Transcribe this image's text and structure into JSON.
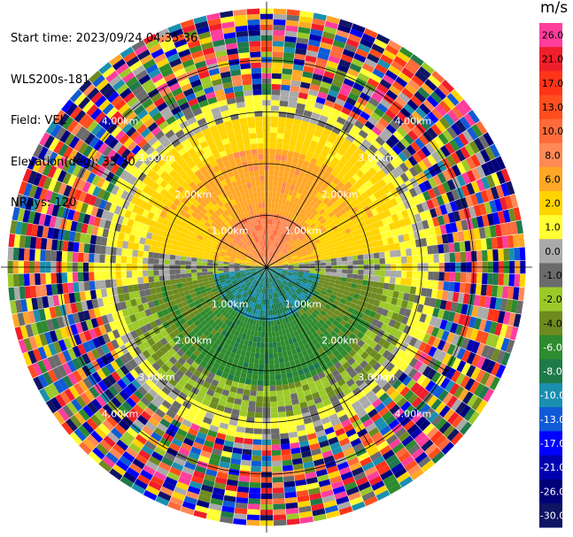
{
  "header": {
    "start_time": "Start time: 2023/09/24 04:35:36",
    "instrument": "WLS200s-181",
    "field": "Field: VEL",
    "elevation": "Elevation(deg): 35.30",
    "nrays": "NRays: 120"
  },
  "colorbar": {
    "unit": "m/s",
    "ticks": [
      "26.0",
      "21.0",
      "17.0",
      "13.0",
      "10.0",
      "8.0",
      "6.0",
      "2.0",
      "1.0",
      "0.0",
      "-1.0",
      "-2.0",
      "-4.0",
      "-6.0",
      "-8.0",
      "-10.0",
      "-13.0",
      "-17.0",
      "-21.0",
      "-26.0",
      "-30.0"
    ],
    "colors": [
      "#ff3d9c",
      "#f01e2a",
      "#ff3419",
      "#ff4e1e",
      "#ff6a3a",
      "#ff8a55",
      "#ffa726",
      "#ffd400",
      "#ffff33",
      "#aaaaaa",
      "#6b6b6b",
      "#9cc92a",
      "#6e8b20",
      "#2e8b2e",
      "#1f7a4a",
      "#1a8fb0",
      "#0f5ad6",
      "#0000ff",
      "#0000b0",
      "#000078",
      "#0f1464"
    ]
  },
  "chart_data": {
    "type": "heatmap",
    "projection": "polar (PPI radar scan)",
    "field": "VEL",
    "units": "m/s",
    "nrays": 120,
    "range_rings_km": [
      1.0,
      2.0,
      3.0,
      4.0
    ],
    "range_ring_labels": [
      "1.00km",
      "2.00km",
      "3.00km",
      "4.00km"
    ],
    "color_levels": [
      -30.0,
      -26.0,
      -21.0,
      -17.0,
      -13.0,
      -10.0,
      -8.0,
      -6.0,
      -4.0,
      -2.0,
      -1.0,
      0.0,
      1.0,
      2.0,
      6.0,
      8.0,
      10.0,
      13.0,
      17.0,
      21.0,
      26.0
    ],
    "description_values": {
      "inner_north_sector_ms": 8.0,
      "north_half_ms": 6.0,
      "transition_ring_ms": 1.5,
      "south_inner_ms": -8.0,
      "south_half_ms": -5.0
    },
    "max_range_km": 5.0
  }
}
